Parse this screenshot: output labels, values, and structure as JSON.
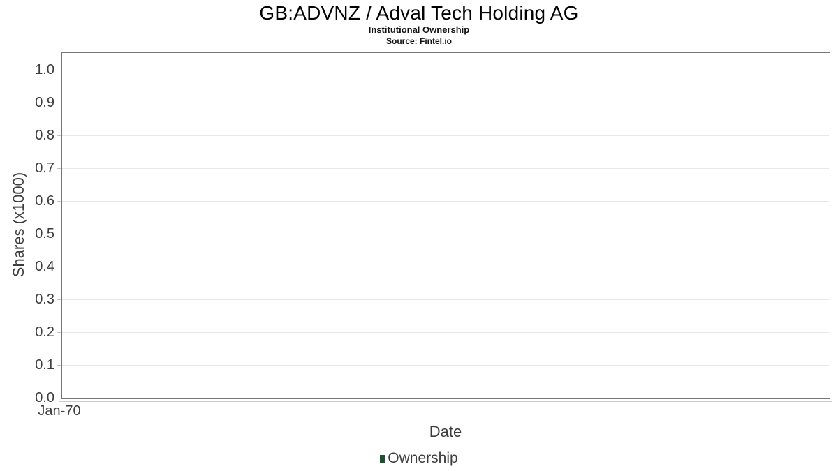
{
  "chart_data": {
    "type": "line",
    "title": "GB:ADVNZ / Adval Tech Holding AG",
    "subtitle": "Institutional Ownership",
    "source": "Source: Fintel.io",
    "xlabel": "Date",
    "ylabel": "Shares (x1000)",
    "x_ticks": [
      "Jan-70"
    ],
    "y_ticks": [
      "0.0",
      "0.1",
      "0.2",
      "0.3",
      "0.4",
      "0.5",
      "0.6",
      "0.7",
      "0.8",
      "0.9",
      "1.0"
    ],
    "ylim": [
      0.0,
      1.0
    ],
    "grid": "horizontal",
    "legend_position": "bottom-center",
    "series": [
      {
        "name": "Ownership",
        "color": "#1f5130",
        "x": [],
        "values": []
      }
    ]
  },
  "legend": {
    "entries": [
      {
        "label": "Ownership",
        "color": "#1f5130"
      }
    ]
  },
  "colors": {
    "series_ownership": "#1f5130",
    "plot_border": "#757575",
    "gridline": "#e7e7e7",
    "axis_text": "#3d3d3d",
    "title_text": "#000000"
  }
}
